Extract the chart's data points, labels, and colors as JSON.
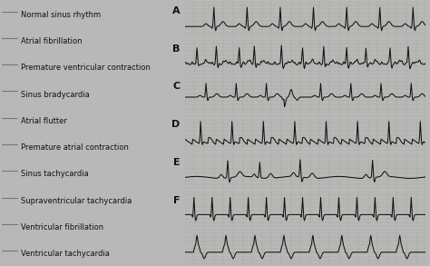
{
  "bg_color": "#b8b8b8",
  "ecg_bg": "#d4d0c8",
  "ecg_grid_major": "#a0a090",
  "ecg_grid_minor": "#c0bdb0",
  "ecg_line_color": "#111111",
  "label_color": "#111111",
  "line_color": "#777777",
  "labels_left": [
    "Normal sinus rhythm",
    "Atrial fibrillation",
    "Premature ventricular contraction",
    "Sinus bradycardia",
    "Atrial flutter",
    "Premature atrial contraction",
    "Sinus tachycardia",
    "Supraventricular tachycardia",
    "Ventricular fibrillation",
    "Ventricular tachycardia"
  ],
  "strip_labels": [
    "A",
    "B",
    "C",
    "D",
    "E",
    "F",
    ""
  ],
  "font_size_label": 6.0,
  "font_size_strip": 8.0,
  "figsize": [
    4.74,
    2.93
  ],
  "dpi": 100
}
